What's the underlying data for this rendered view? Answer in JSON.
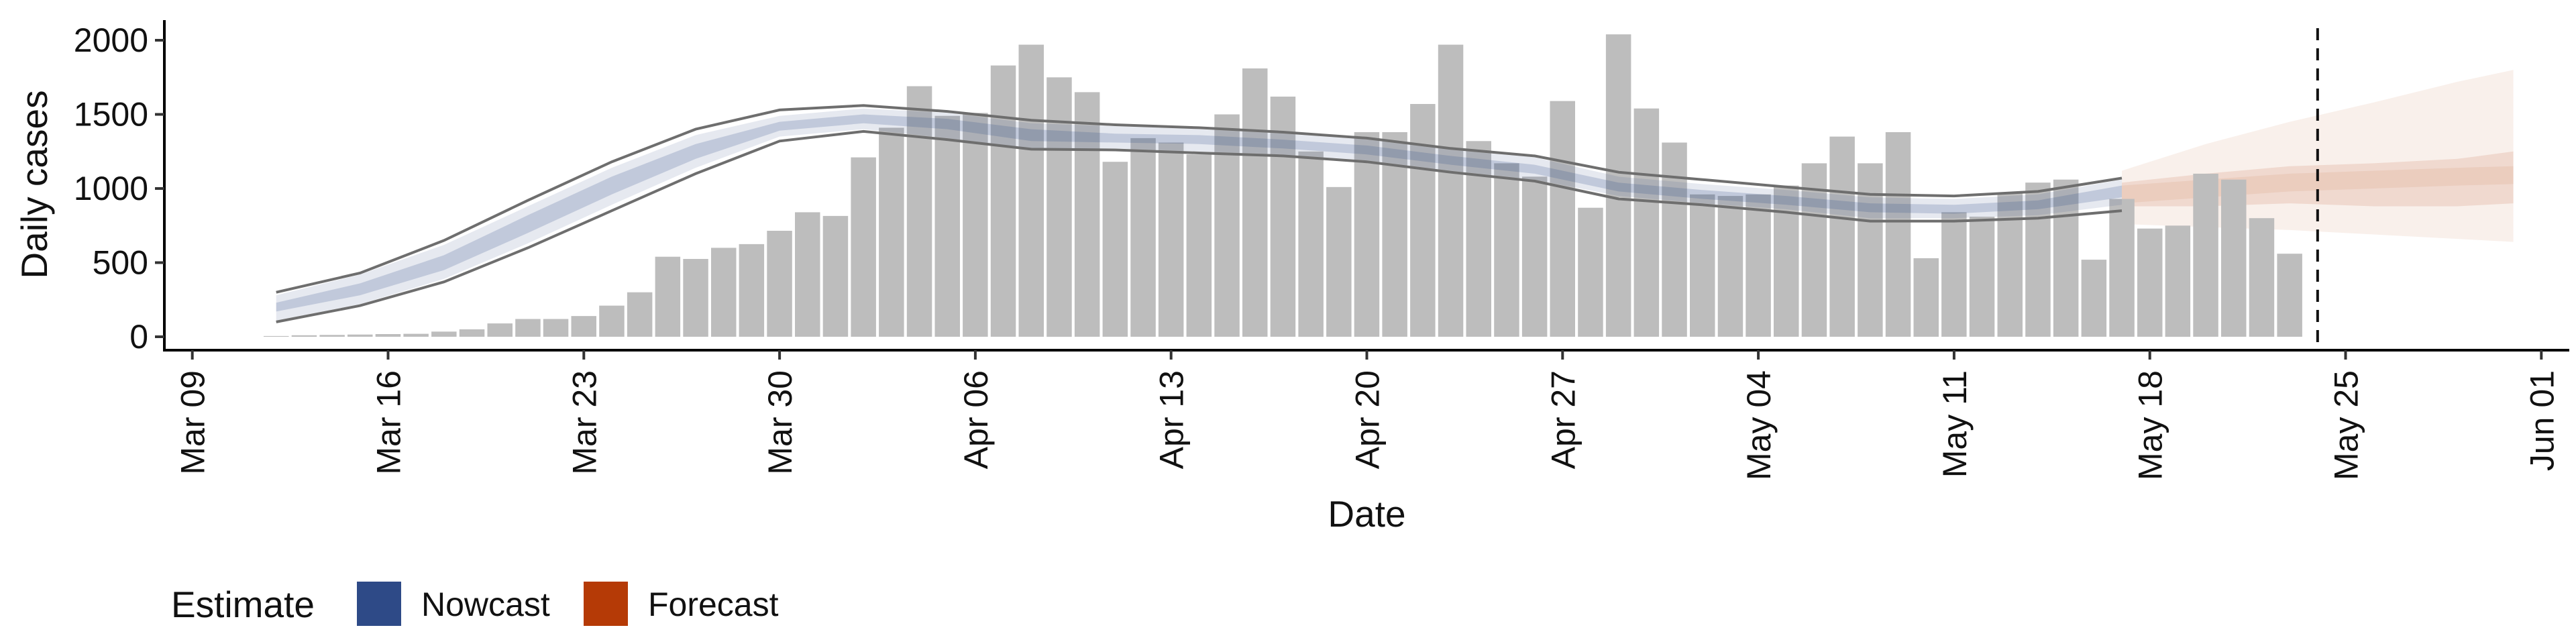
{
  "chart_data": {
    "type": "bar",
    "xlabel": "Date",
    "ylabel": "Daily cases",
    "ylim": [
      0,
      2100
    ],
    "xlim": [
      "2020-03-08",
      "2020-06-02"
    ],
    "y_ticks": [
      0,
      500,
      1000,
      1500,
      2000
    ],
    "x_ticks": [
      "2020-03-09",
      "2020-03-16",
      "2020-03-23",
      "2020-03-30",
      "2020-04-06",
      "2020-04-13",
      "2020-04-20",
      "2020-04-27",
      "2020-05-04",
      "2020-05-11",
      "2020-05-18",
      "2020-05-25",
      "2020-06-01"
    ],
    "x_tick_labels": [
      "Mar 09",
      "Mar 16",
      "Mar 23",
      "Mar 30",
      "Apr 06",
      "Apr 13",
      "Apr 20",
      "Apr 27",
      "May 04",
      "May 11",
      "May 18",
      "May 25",
      "Jun 01"
    ],
    "grid": false,
    "legend": {
      "position": "bottom-left",
      "title": "Estimate",
      "entries": [
        {
          "label": "Nowcast",
          "color": "#2e4a87"
        },
        {
          "label": "Forecast",
          "color": "#b53a06"
        }
      ]
    },
    "colors": {
      "bars": "#bdbdbd",
      "nowcast": "#2e4a87",
      "forecast": "#b53a06",
      "bound_lines": "#6e6e6e",
      "vline": "#111111"
    },
    "vline_date": "2020-05-24",
    "bars": {
      "start": "2020-03-12",
      "values": [
        5,
        10,
        12,
        15,
        18,
        20,
        35,
        50,
        90,
        120,
        120,
        140,
        210,
        300,
        540,
        525,
        600,
        625,
        715,
        840,
        815,
        1210,
        1410,
        1690,
        1490,
        1510,
        1830,
        1970,
        1750,
        1650,
        1180,
        1340,
        1310,
        1230,
        1500,
        1810,
        1620,
        1250,
        1010,
        1380,
        1380,
        1570,
        1970,
        1320,
        1170,
        1080,
        1590,
        870,
        2040,
        1540,
        1310,
        960,
        950,
        960,
        1020,
        1170,
        1350,
        1170,
        1380,
        530,
        840,
        810,
        970,
        1040,
        1060,
        520,
        930,
        730,
        750,
        1100,
        1060,
        800,
        560
      ]
    },
    "nowcast": {
      "dates": [
        "2020-03-12",
        "2020-03-15",
        "2020-03-18",
        "2020-03-21",
        "2020-03-24",
        "2020-03-27",
        "2020-03-30",
        "2020-04-02",
        "2020-04-05",
        "2020-04-08",
        "2020-04-11",
        "2020-04-14",
        "2020-04-17",
        "2020-04-20",
        "2020-04-23",
        "2020-04-26",
        "2020-04-29",
        "2020-05-02",
        "2020-05-05",
        "2020-05-08",
        "2020-05-11",
        "2020-05-14",
        "2020-05-17"
      ],
      "median": [
        200,
        320,
        500,
        760,
        1020,
        1250,
        1420,
        1470,
        1440,
        1360,
        1340,
        1330,
        1300,
        1260,
        1190,
        1130,
        1010,
        960,
        920,
        870,
        860,
        890,
        980
      ],
      "inner_lower": [
        170,
        280,
        450,
        700,
        960,
        1200,
        1390,
        1440,
        1400,
        1320,
        1310,
        1300,
        1270,
        1230,
        1160,
        1100,
        980,
        930,
        890,
        840,
        830,
        860,
        940
      ],
      "inner_upper": [
        230,
        360,
        550,
        820,
        1080,
        1300,
        1450,
        1500,
        1470,
        1400,
        1370,
        1360,
        1330,
        1290,
        1220,
        1160,
        1040,
        990,
        950,
        900,
        890,
        920,
        1020
      ],
      "outer_lower": [
        110,
        220,
        390,
        630,
        890,
        1140,
        1350,
        1400,
        1340,
        1270,
        1270,
        1250,
        1230,
        1190,
        1120,
        1060,
        950,
        900,
        860,
        800,
        800,
        820,
        890
      ],
      "outer_upper": [
        280,
        420,
        620,
        880,
        1140,
        1360,
        1490,
        1540,
        1510,
        1440,
        1420,
        1400,
        1370,
        1330,
        1260,
        1210,
        1080,
        1030,
        990,
        940,
        930,
        960,
        1060
      ],
      "bound_lower": [
        100,
        210,
        370,
        600,
        850,
        1100,
        1320,
        1385,
        1330,
        1265,
        1260,
        1240,
        1220,
        1180,
        1110,
        1050,
        930,
        890,
        840,
        780,
        780,
        800,
        850
      ],
      "bound_upper": [
        300,
        430,
        650,
        920,
        1180,
        1400,
        1530,
        1560,
        1520,
        1460,
        1430,
        1410,
        1380,
        1340,
        1270,
        1220,
        1110,
        1060,
        1010,
        960,
        950,
        980,
        1070
      ]
    },
    "forecast": {
      "dates": [
        "2020-05-17",
        "2020-05-20",
        "2020-05-23",
        "2020-05-26",
        "2020-05-29",
        "2020-05-31"
      ],
      "median": [
        960,
        1000,
        1040,
        1060,
        1080,
        1090
      ],
      "inner_lower": [
        880,
        880,
        900,
        880,
        880,
        900
      ],
      "inner_upper": [
        1040,
        1100,
        1150,
        1170,
        1200,
        1250
      ],
      "outer_lower": [
        760,
        740,
        720,
        690,
        660,
        640
      ],
      "outer_upper": [
        1120,
        1300,
        1450,
        1580,
        1720,
        1800
      ]
    }
  }
}
